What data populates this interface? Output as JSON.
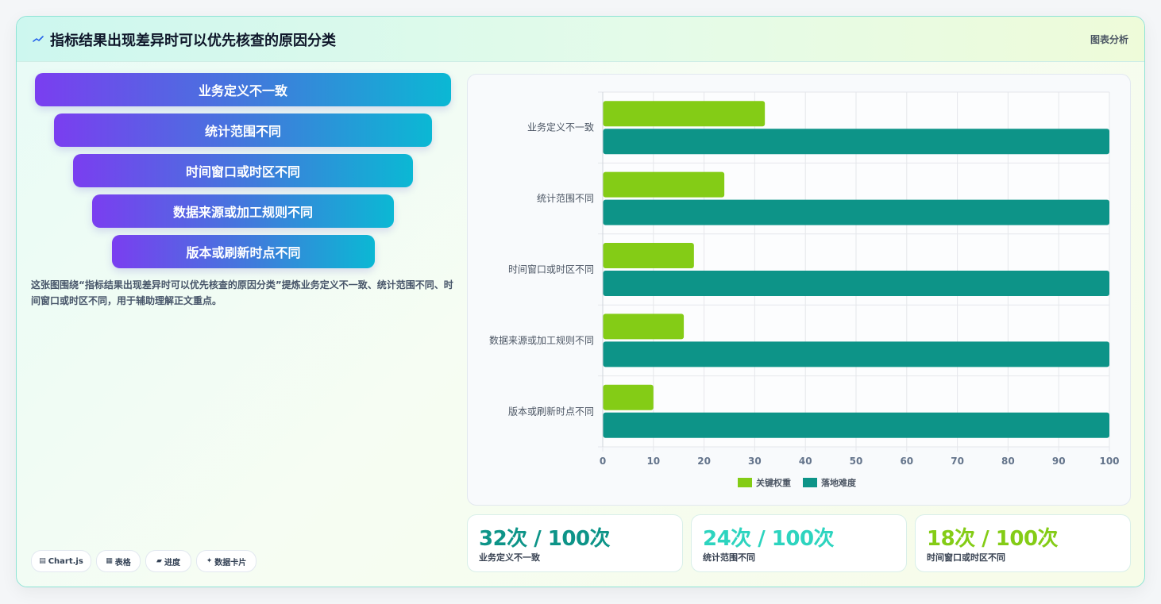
{
  "header": {
    "title": "指标结果出现差异时可以优先核查的原因分类",
    "tag": "图表分析",
    "icon": "trend-line-icon"
  },
  "funnel": {
    "items": [
      "业务定义不一致",
      "统计范围不同",
      "时间窗口或时区不同",
      "数据来源或加工规则不同",
      "版本或刷新时点不同"
    ]
  },
  "description": "这张图围绕“指标结果出现差异时可以优先核查的原因分类”提炼业务定义不一致、统计范围不同、时间窗口或时区不同，用于辅助理解正文重点。",
  "chips": [
    {
      "icon": "chart-icon",
      "glyph": "▤",
      "label": "Chart.js"
    },
    {
      "icon": "table-icon",
      "glyph": "▦",
      "label": "表格"
    },
    {
      "icon": "progress-icon",
      "glyph": "▰",
      "label": "进度"
    },
    {
      "icon": "sparkle-icon",
      "glyph": "✦",
      "label": "数据卡片"
    }
  ],
  "chart_data": {
    "type": "bar",
    "orientation": "horizontal",
    "categories": [
      "业务定义不一致",
      "统计范围不同",
      "时间窗口或时区不同",
      "数据来源或加工规则不同",
      "版本或刷新时点不同"
    ],
    "series": [
      {
        "name": "关键权重",
        "color": "#84cc16",
        "values": [
          32,
          24,
          18,
          16,
          10
        ]
      },
      {
        "name": "落地难度",
        "color": "#0d9488",
        "values": [
          100,
          100,
          100,
          100,
          100
        ]
      }
    ],
    "xlim": [
      0,
      100
    ],
    "xticks": [
      "0",
      "10",
      "20",
      "30",
      "40",
      "50",
      "60",
      "70",
      "80",
      "90",
      "100"
    ],
    "grid": true,
    "legend": "bottom-center"
  },
  "stats": [
    {
      "value": "32次 / 100次",
      "label": "业务定义不一致",
      "color": "#0d9488"
    },
    {
      "value": "24次 / 100次",
      "label": "统计范围不同",
      "color": "#2dd4bf"
    },
    {
      "value": "18次 / 100次",
      "label": "时间窗口或时区不同",
      "color": "#84cc16"
    }
  ]
}
